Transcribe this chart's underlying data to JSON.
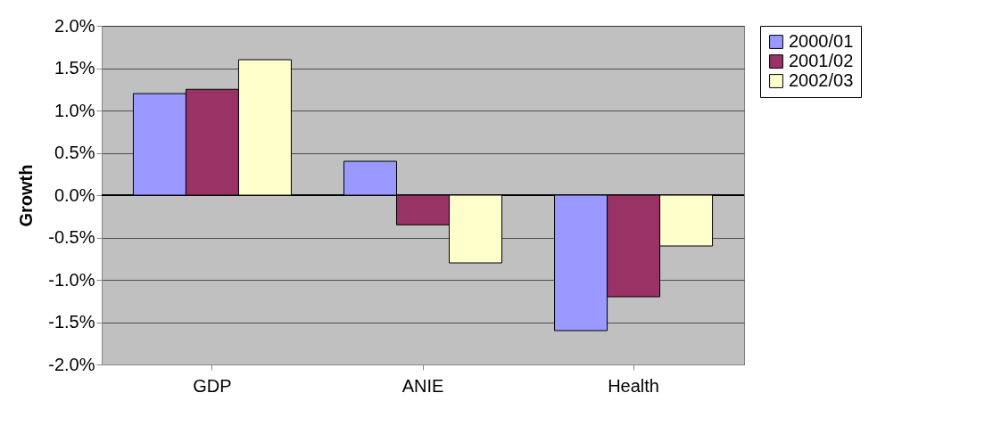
{
  "chart_data": {
    "type": "bar",
    "ylabel": "Growth",
    "categories": [
      "GDP",
      "ANIE",
      "Health"
    ],
    "series": [
      {
        "name": "2000/01",
        "color": "#9999ff",
        "values": [
          1.2,
          0.4,
          -1.6
        ]
      },
      {
        "name": "2001/02",
        "color": "#993366",
        "values": [
          1.25,
          -0.35,
          -1.2
        ]
      },
      {
        "name": "2002/03",
        "color": "#ffffcc",
        "values": [
          1.6,
          -0.8,
          -0.6
        ]
      }
    ],
    "ylim": [
      -2,
      2
    ],
    "yticks": [
      {
        "value": -2,
        "label": "-2.0%"
      },
      {
        "value": -1.5,
        "label": "-1.5%"
      },
      {
        "value": -1,
        "label": "-1.0%"
      },
      {
        "value": -0.5,
        "label": "-0.5%"
      },
      {
        "value": 0,
        "label": "0.0%"
      },
      {
        "value": 0.5,
        "label": "0.5%"
      },
      {
        "value": 1,
        "label": "1.0%"
      },
      {
        "value": 1.5,
        "label": "1.5%"
      },
      {
        "value": 2,
        "label": "2.0%"
      }
    ],
    "grid": "y",
    "legend": "right"
  }
}
